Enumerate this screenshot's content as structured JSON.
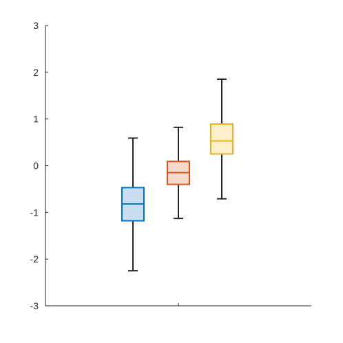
{
  "chart_data": {
    "type": "box",
    "title": "",
    "xlabel": "",
    "ylabel": "",
    "ylim": [
      -3,
      3
    ],
    "yticks": [
      "3",
      "2",
      "1",
      "0",
      "-1",
      "-2",
      "-3"
    ],
    "ytick_values": [
      3,
      2,
      1,
      0,
      -1,
      -2,
      -3
    ],
    "grid": false,
    "legend": "none",
    "series": [
      {
        "whisker_low": -2.25,
        "q1": -1.18,
        "median": -0.82,
        "q3": -0.47,
        "whisker_high": 0.59,
        "stroke": "#0072BD",
        "fill": "#C9DFF0"
      },
      {
        "whisker_low": -1.13,
        "q1": -0.4,
        "median": -0.15,
        "q3": 0.09,
        "whisker_high": 0.82,
        "stroke": "#D95319",
        "fill": "#F6D9CC"
      },
      {
        "whisker_low": -0.71,
        "q1": 0.25,
        "median": 0.53,
        "q3": 0.89,
        "whisker_high": 1.85,
        "stroke": "#EDB120",
        "fill": "#FBEFCC"
      }
    ]
  }
}
